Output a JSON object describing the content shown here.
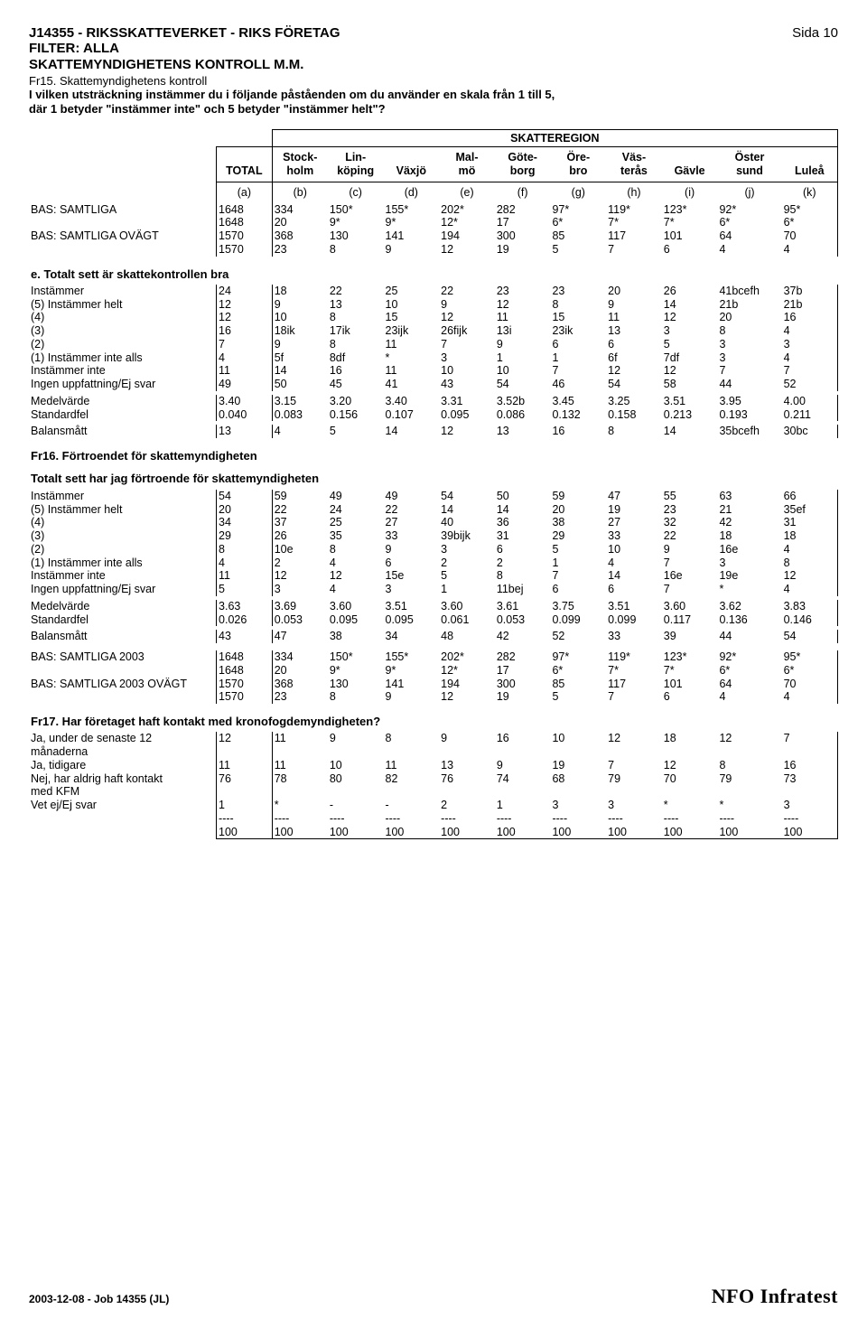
{
  "header": {
    "title1": "J14355 - RIKSSKATTEVERKET - RIKS FÖRETAG",
    "filter": "FILTER: ALLA",
    "title2": "SKATTEMYNDIGHETENS KONTROLL M.M.",
    "page": "Sida 10",
    "q_line1": "Fr15. Skattemyndighetens kontroll",
    "q_line2": "I vilken utsträckning instämmer du i följande påståenden om du använder en skala från 1 till 5,",
    "q_line3": "där 1 betyder \"instämmer inte\" och 5 betyder \"instämmer helt\"?"
  },
  "banner": {
    "group": "SKATTEREGION",
    "cols": [
      "TOTAL",
      "Stock-\nholm",
      "Lin-\nköping",
      "Växjö",
      "Mal-\nmö",
      "Göte-\nborg",
      "Öre-\nbro",
      "Väs-\nterås",
      "Gävle",
      "Öster\nsund",
      "Luleå"
    ],
    "letters": [
      "(a)",
      "(b)",
      "(c)",
      "(d)",
      "(e)",
      "(f)",
      "(g)",
      "(h)",
      "(i)",
      "(j)",
      "(k)"
    ]
  },
  "base_rows": [
    {
      "label": "BAS: SAMTLIGA",
      "r1": [
        "1648",
        "334",
        "150*",
        "155*",
        "202*",
        "282",
        "97*",
        "119*",
        "123*",
        "92*",
        "95*"
      ],
      "r2": [
        "1648",
        "20",
        "9*",
        "9*",
        "12*",
        "17",
        "6*",
        "7*",
        "7*",
        "6*",
        "6*"
      ]
    },
    {
      "label": "BAS: SAMTLIGA OVÄGT",
      "r1": [
        "1570",
        "368",
        "130",
        "141",
        "194",
        "300",
        "85",
        "117",
        "101",
        "64",
        "70"
      ],
      "r2": [
        "1570",
        "23",
        "8",
        "9",
        "12",
        "19",
        "5",
        "7",
        "6",
        "4",
        "4"
      ]
    }
  ],
  "section_e": {
    "title": "e. Totalt sett är skattekontrollen bra",
    "rows": [
      {
        "label": "Instämmer",
        "v": [
          "24",
          "18",
          "22",
          "25",
          "22",
          "23",
          "23",
          "20",
          "26",
          "41bcefh",
          "37b"
        ]
      },
      {
        "label": "(5) Instämmer helt",
        "v": [
          "12",
          "9",
          "13",
          "10",
          "9",
          "12",
          "8",
          "9",
          "14",
          "21b",
          "21b"
        ]
      },
      {
        "label": "(4)",
        "v": [
          "12",
          "10",
          "8",
          "15",
          "12",
          "11",
          "15",
          "11",
          "12",
          "20",
          "16"
        ]
      },
      {
        "label": "(3)",
        "v": [
          "16",
          "18ik",
          "17ik",
          "23ijk",
          "26fijk",
          "13i",
          "23ik",
          "13",
          "3",
          "8",
          "4"
        ]
      },
      {
        "label": "(2)",
        "v": [
          "7",
          "9",
          "8",
          "11",
          "7",
          "9",
          "6",
          "6",
          "5",
          "3",
          "3"
        ]
      },
      {
        "label": "(1) Instämmer inte alls",
        "v": [
          "4",
          "5f",
          "8df",
          "*",
          "3",
          "1",
          "1",
          "6f",
          "7df",
          "3",
          "4"
        ]
      },
      {
        "label": "Instämmer inte",
        "v": [
          "11",
          "14",
          "16",
          "11",
          "10",
          "10",
          "7",
          "12",
          "12",
          "7",
          "7"
        ]
      },
      {
        "label": "Ingen uppfattning/Ej svar",
        "v": [
          "49",
          "50",
          "45",
          "41",
          "43",
          "54",
          "46",
          "54",
          "58",
          "44",
          "52"
        ]
      }
    ],
    "mean": {
      "label": "Medelvärde",
      "v": [
        "3.40",
        "3.15",
        "3.20",
        "3.40",
        "3.31",
        "3.52b",
        "3.45",
        "3.25",
        "3.51",
        "3.95",
        "4.00"
      ]
    },
    "se": {
      "label": "Standardfel",
      "v": [
        "0.040",
        "0.083",
        "0.156",
        "0.107",
        "0.095",
        "0.086",
        "0.132",
        "0.158",
        "0.213",
        "0.193",
        "0.211"
      ]
    },
    "bal": {
      "label": "Balansmått",
      "v": [
        "13",
        "4",
        "5",
        "14",
        "12",
        "13",
        "16",
        "8",
        "14",
        "35bcefh",
        "30bc"
      ]
    }
  },
  "fr16": {
    "title": "Fr16. Förtroendet för skattemyndigheten",
    "sub": "Totalt sett har jag förtroende för skattemyndigheten",
    "rows": [
      {
        "label": "Instämmer",
        "v": [
          "54",
          "59",
          "49",
          "49",
          "54",
          "50",
          "59",
          "47",
          "55",
          "63",
          "66"
        ]
      },
      {
        "label": "(5) Instämmer helt",
        "v": [
          "20",
          "22",
          "24",
          "22",
          "14",
          "14",
          "20",
          "19",
          "23",
          "21",
          "35ef"
        ]
      },
      {
        "label": "(4)",
        "v": [
          "34",
          "37",
          "25",
          "27",
          "40",
          "36",
          "38",
          "27",
          "32",
          "42",
          "31"
        ]
      },
      {
        "label": "(3)",
        "v": [
          "29",
          "26",
          "35",
          "33",
          "39bijk",
          "31",
          "29",
          "33",
          "22",
          "18",
          "18"
        ]
      },
      {
        "label": "(2)",
        "v": [
          "8",
          "10e",
          "8",
          "9",
          "3",
          "6",
          "5",
          "10",
          "9",
          "16e",
          "4"
        ]
      },
      {
        "label": "(1) Instämmer inte alls",
        "v": [
          "4",
          "2",
          "4",
          "6",
          "2",
          "2",
          "1",
          "4",
          "7",
          "3",
          "8"
        ]
      },
      {
        "label": "Instämmer inte",
        "v": [
          "11",
          "12",
          "12",
          "15e",
          "5",
          "8",
          "7",
          "14",
          "16e",
          "19e",
          "12"
        ]
      },
      {
        "label": "Ingen uppfattning/Ej svar",
        "v": [
          "5",
          "3",
          "4",
          "3",
          "1",
          "11bej",
          "6",
          "6",
          "7",
          "*",
          "4"
        ]
      }
    ],
    "mean": {
      "label": "Medelvärde",
      "v": [
        "3.63",
        "3.69",
        "3.60",
        "3.51",
        "3.60",
        "3.61",
        "3.75",
        "3.51",
        "3.60",
        "3.62",
        "3.83"
      ]
    },
    "se": {
      "label": "Standardfel",
      "v": [
        "0.026",
        "0.053",
        "0.095",
        "0.095",
        "0.061",
        "0.053",
        "0.099",
        "0.099",
        "0.117",
        "0.136",
        "0.146"
      ]
    },
    "bal": {
      "label": "Balansmått",
      "v": [
        "43",
        "47",
        "38",
        "34",
        "48",
        "42",
        "52",
        "33",
        "39",
        "44",
        "54"
      ]
    }
  },
  "base_rows2": [
    {
      "label": "BAS: SAMTLIGA 2003",
      "r1": [
        "1648",
        "334",
        "150*",
        "155*",
        "202*",
        "282",
        "97*",
        "119*",
        "123*",
        "92*",
        "95*"
      ],
      "r2": [
        "1648",
        "20",
        "9*",
        "9*",
        "12*",
        "17",
        "6*",
        "7*",
        "7*",
        "6*",
        "6*"
      ]
    },
    {
      "label": "BAS: SAMTLIGA 2003 OVÄGT",
      "r1": [
        "1570",
        "368",
        "130",
        "141",
        "194",
        "300",
        "85",
        "117",
        "101",
        "64",
        "70"
      ],
      "r2": [
        "1570",
        "23",
        "8",
        "9",
        "12",
        "19",
        "5",
        "7",
        "6",
        "4",
        "4"
      ]
    }
  ],
  "fr17": {
    "title": "Fr17. Har företaget haft kontakt med kronofogdemyndigheten?",
    "rows": [
      {
        "label": "Ja, under de senaste 12",
        "v": [
          "12",
          "11",
          "9",
          "8",
          "9",
          "16",
          "10",
          "12",
          "18",
          "12",
          "7"
        ]
      },
      {
        "label": "månaderna",
        "v": [
          "",
          "",
          "",
          "",
          "",
          "",
          "",
          "",
          "",
          "",
          ""
        ]
      },
      {
        "label": "Ja, tidigare",
        "v": [
          "11",
          "11",
          "10",
          "11",
          "13",
          "9",
          "19",
          "7",
          "12",
          "8",
          "16"
        ]
      },
      {
        "label": "Nej, har aldrig haft kontakt",
        "v": [
          "76",
          "78",
          "80",
          "82",
          "76",
          "74",
          "68",
          "79",
          "70",
          "79",
          "73"
        ]
      },
      {
        "label": "med KFM",
        "v": [
          "",
          "",
          "",
          "",
          "",
          "",
          "",
          "",
          "",
          "",
          ""
        ]
      },
      {
        "label": "Vet ej/Ej svar",
        "v": [
          "1",
          "*",
          "-",
          "-",
          "2",
          "1",
          "3",
          "3",
          "*",
          "*",
          "3"
        ]
      }
    ],
    "dash": [
      "----",
      "----",
      "----",
      "----",
      "----",
      "----",
      "----",
      "----",
      "----",
      "----",
      "----"
    ],
    "tot": [
      "100",
      "100",
      "100",
      "100",
      "100",
      "100",
      "100",
      "100",
      "100",
      "100",
      "100"
    ]
  },
  "footer": {
    "date": "2003-12-08 - Job 14355 (JL)",
    "brand": "NFO Infratest"
  }
}
